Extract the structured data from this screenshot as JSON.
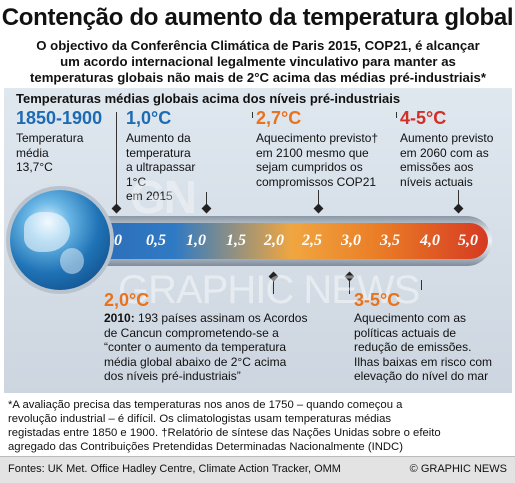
{
  "header": {
    "title": "Contenção do aumento da temperatura global",
    "subtitle_lines": [
      "O objectivo da Conferência Climática de Paris 2015, COP21, é alcançar",
      "um acordo internacional legalmente vinculativo para manter as",
      "temperaturas globais não mais de 2°C acima das médias pré-industriais*"
    ]
  },
  "panel": {
    "heading": "Temperaturas médias globais acima dos níveis pré-industriais",
    "top_callouts": [
      {
        "label": "1850-1900",
        "lines": [
          "Temperatura",
          "média",
          "13,7°C"
        ]
      },
      {
        "label": "1,0°C",
        "lines": [
          "Aumento da",
          "temperatura",
          "a ultrapassar",
          "1°C",
          "em 2015"
        ]
      },
      {
        "label": "2,7°C",
        "lines": [
          "Aquecimento previsto†",
          "em 2100 mesmo que",
          "sejam cumpridos os",
          "compromissos COP21"
        ]
      },
      {
        "label": "4-5°C",
        "lines": [
          "Aumento previsto",
          "em 2060 com as",
          "emissões aos",
          "níveis actuais"
        ]
      }
    ],
    "scale": [
      "0",
      "0,5",
      "1,0",
      "1,5",
      "2,0",
      "2,5",
      "3,0",
      "3,5",
      "4,0",
      "5,0"
    ],
    "bottom_callouts": [
      {
        "label": "2,0°C",
        "bold": "2010:",
        "lines": [
          " 193 países assinam os Acordos",
          "de Cancun comprometendo-se a",
          "“conter o aumento da temperatura",
          "média global abaixo de 2°C acima",
          "dos níveis pré-industriais”"
        ]
      },
      {
        "label": "3-5°C",
        "lines": [
          "Aquecimento com as",
          "políticas actuais de",
          "redução de emissões.",
          "Ilhas baixas em risco com",
          "elevação do nível do mar"
        ]
      }
    ],
    "watermark": "GN",
    "watermark2": "GRAPHIC NEWS"
  },
  "footnote": {
    "lines": [
      "*A avaliação precisa das temperaturas nos anos de 1750 – quando começou a",
      "revolução industrial – é difícil. Os climatologistas usam temperaturas médias",
      "registadas entre 1850 e 1900. †Relatório de síntese das Nações Unidas sobre o efeito",
      "agregado das Contribuições Pretendidas Determinadas Nacionalmente (INDC)"
    ]
  },
  "footer": {
    "sources": "Fontes: UK Met. Office Hadley Centre, Climate Action Tracker, OMM",
    "credit": "© GRAPHIC NEWS"
  },
  "colors": {
    "blue": "#1d6bb3",
    "orange": "#e8731e",
    "red": "#d42e26"
  }
}
